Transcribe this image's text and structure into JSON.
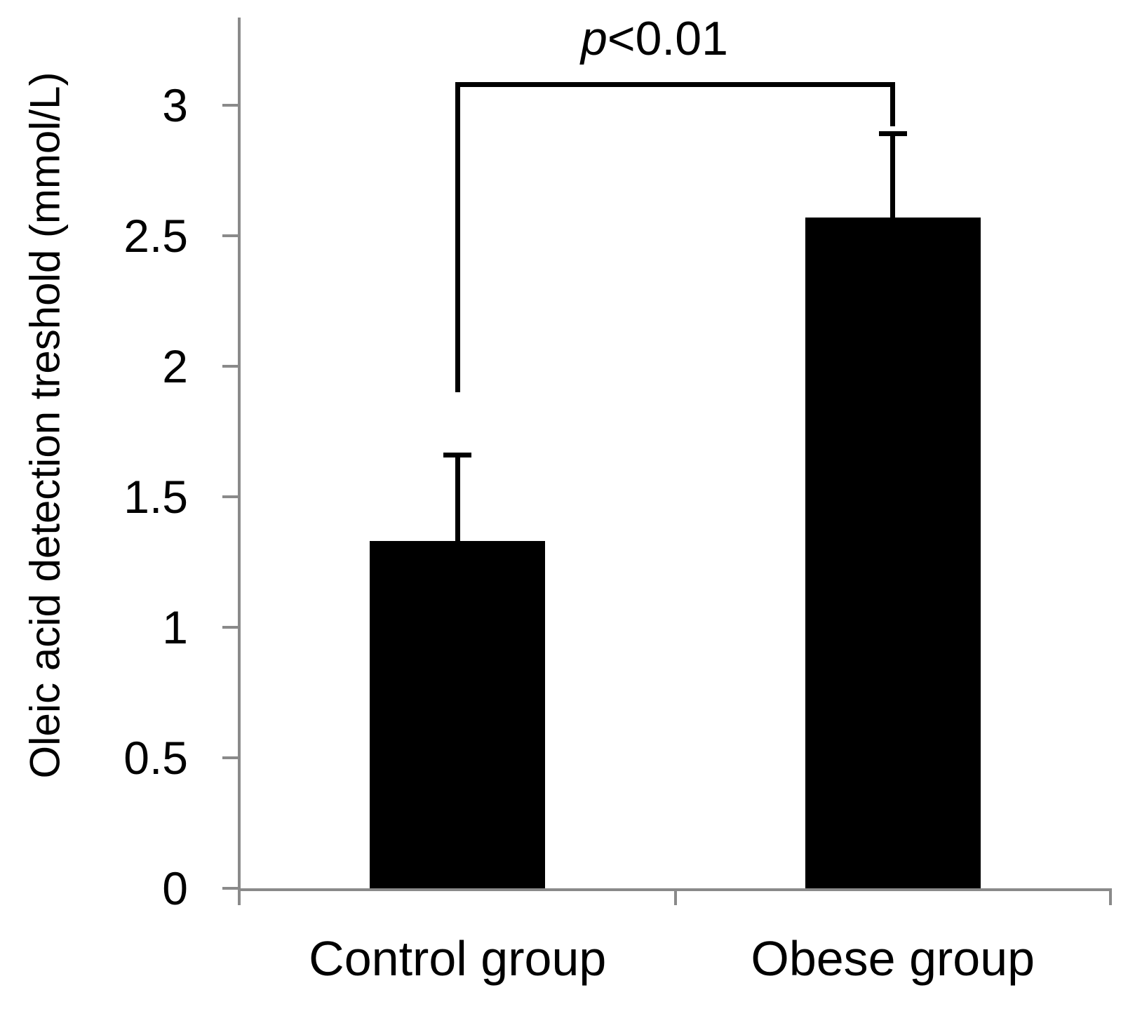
{
  "figure_title": "",
  "chart_data": {
    "type": "bar",
    "title": "",
    "xlabel": "",
    "ylabel": "Oleic acid detection treshold (mmol/L)",
    "categories": [
      "Control group",
      "Obese group"
    ],
    "values": [
      1.33,
      2.57
    ],
    "errors_upper": [
      0.33,
      0.32
    ],
    "error_bar_direction": "upper-only",
    "yticks": [
      0,
      0.5,
      1,
      1.5,
      2,
      2.5,
      3
    ],
    "ytick_labels": [
      "0",
      "0.5",
      "1",
      "1.5",
      "2",
      "2.5",
      "3"
    ],
    "ylim": [
      0,
      3.34
    ],
    "grid": "off",
    "legend": "none",
    "bar_color": "#000000",
    "axis_color": "#8a8a8a",
    "text_color": "#000000",
    "annotation": {
      "text": "p<0.01",
      "text_italic_part": "p",
      "text_rest": "<0.01",
      "bracket": {
        "top_value": 3.08,
        "left_bottom_value": 1.9,
        "right_bottom_value": 2.92
      }
    }
  }
}
